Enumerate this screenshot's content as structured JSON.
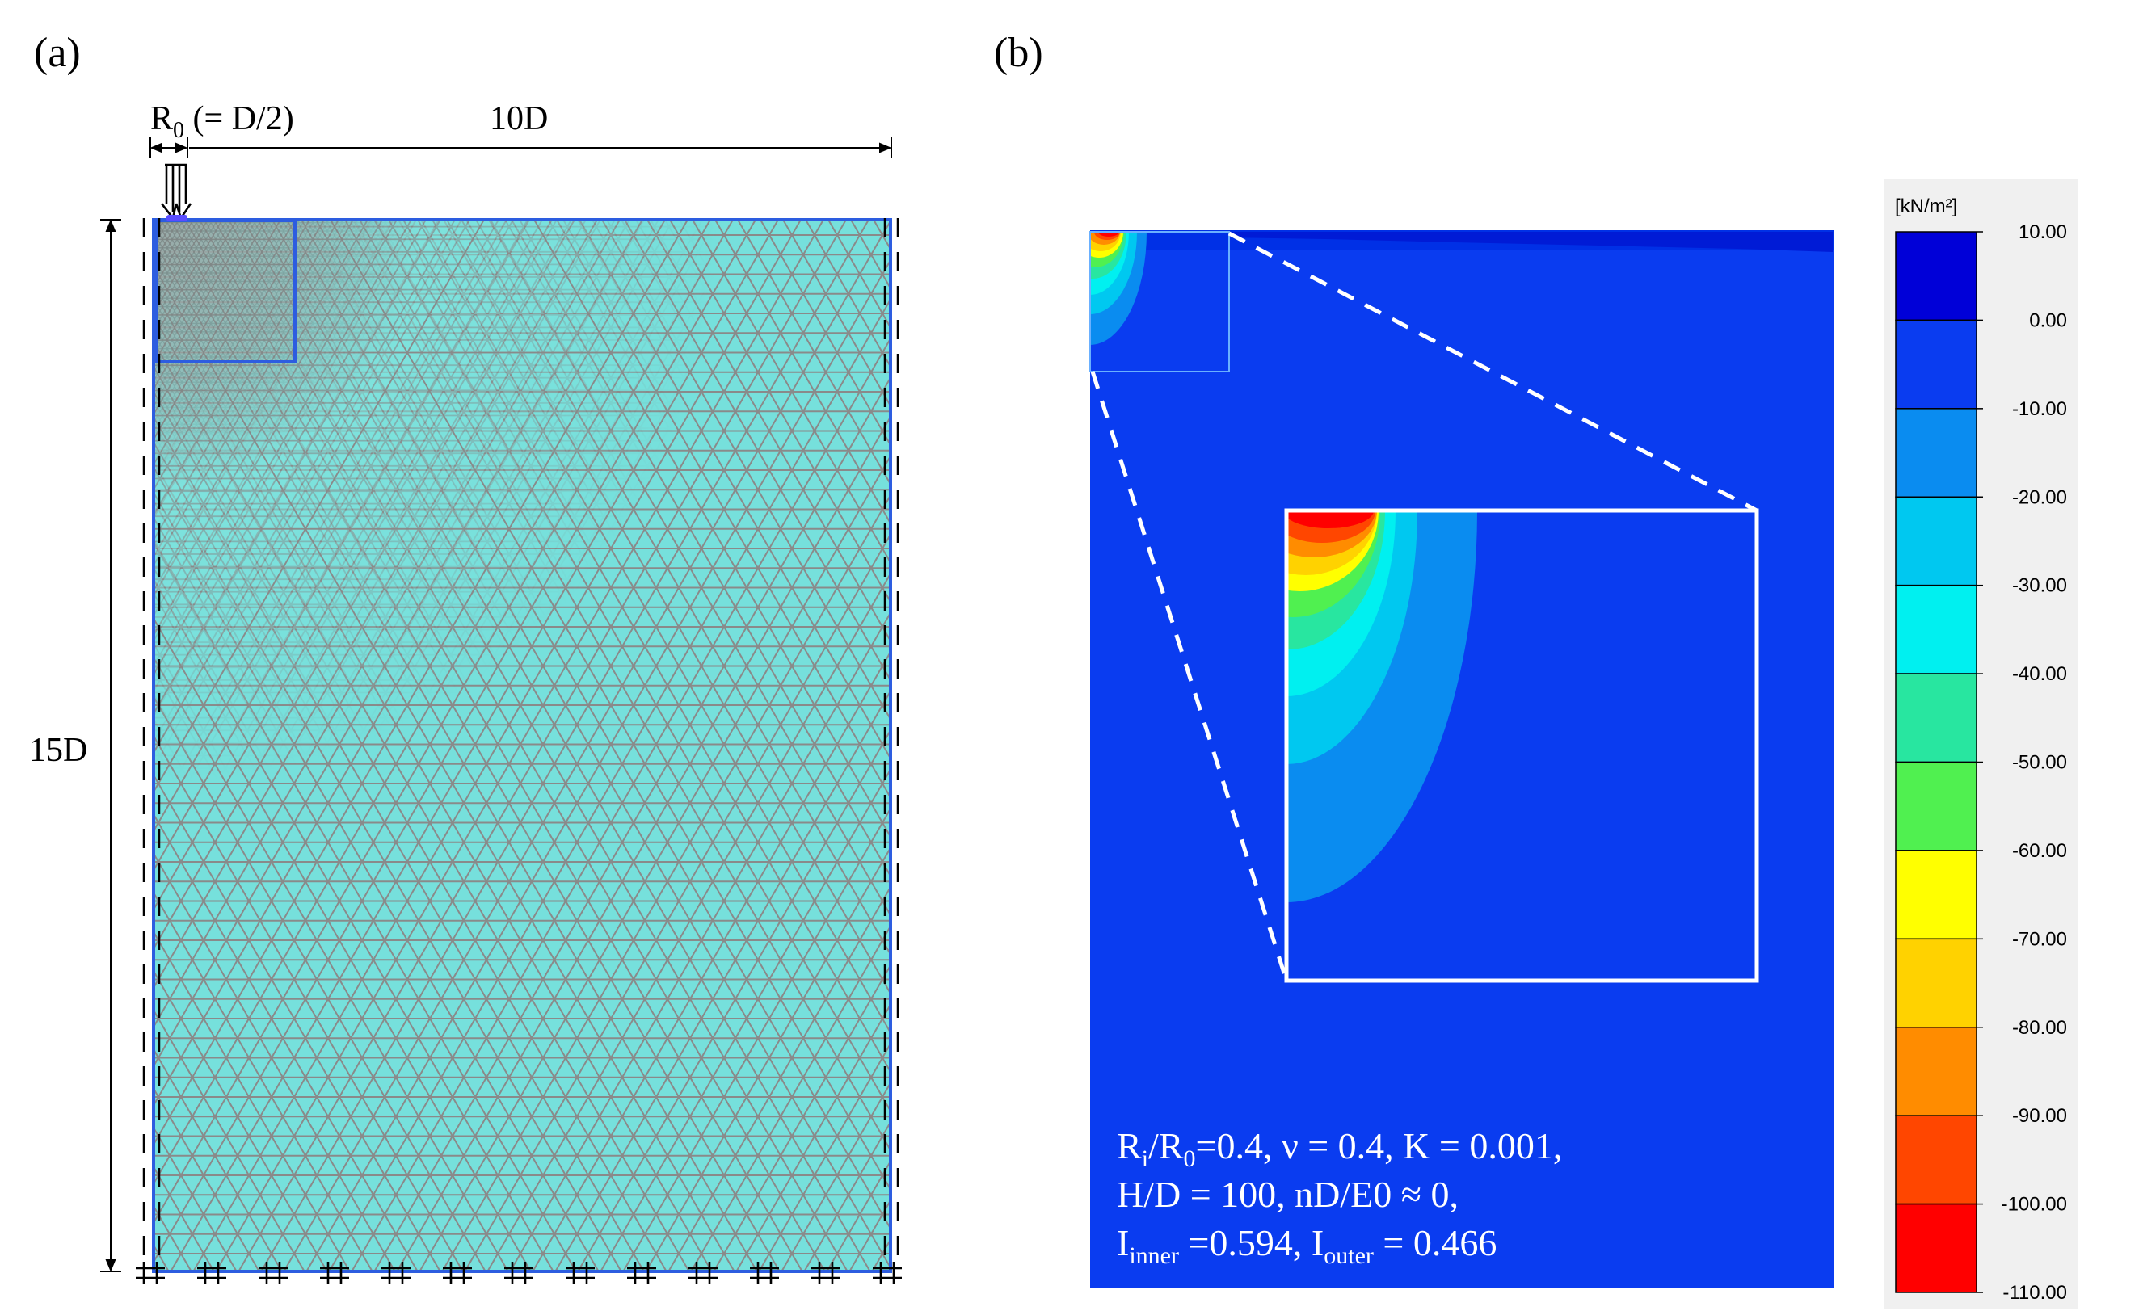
{
  "panel_a": {
    "label": "(a)",
    "dim_r0": {
      "main": "R",
      "sub": "0",
      "rest": " (= D/2)"
    },
    "dim_width": "10D",
    "dim_height": "15D"
  },
  "panel_b": {
    "label": "(b)",
    "params": {
      "line1": {
        "a": "R",
        "a_sub": "i",
        "b": "/R",
        "b_sub": "0",
        "rest": "=0.4, ν = 0.4, K = 0.001,"
      },
      "line2": "H/D = 100, nD/E0 ≈ 0,",
      "line3": {
        "a": "I",
        "a_sub": "inner",
        "mid": " =0.594, I",
        "b_sub": "outer",
        "rest": " = 0.466"
      }
    }
  },
  "legend": {
    "unit": "[kN/m²]",
    "ticks": [
      "10.00",
      "0.00",
      "-10.00",
      "-20.00",
      "-30.00",
      "-40.00",
      "-50.00",
      "-60.00",
      "-70.00",
      "-80.00",
      "-90.00",
      "-100.00",
      "-110.00"
    ],
    "colors": [
      "#0000d8",
      "#0a3cf0",
      "#0a8cf0",
      "#00c8f0",
      "#00f0f0",
      "#28e6a0",
      "#50f050",
      "#ffff00",
      "#ffd200",
      "#ff8c00",
      "#ff4600",
      "#ff0000"
    ]
  }
}
